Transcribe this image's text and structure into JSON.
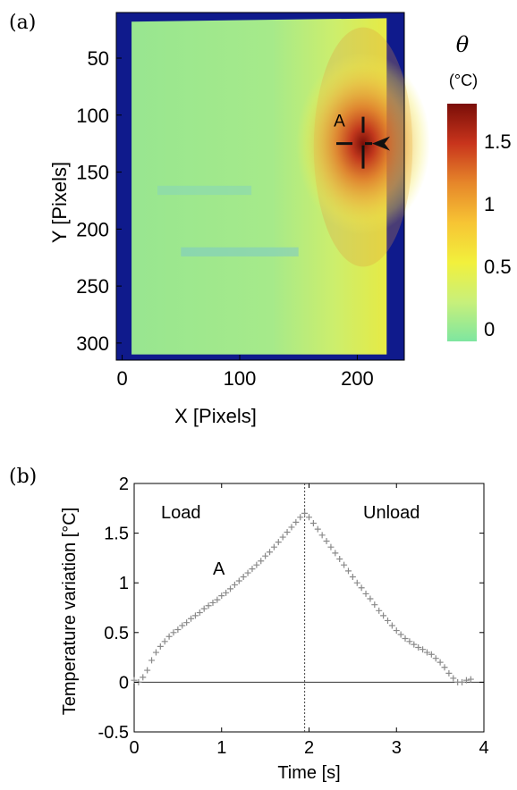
{
  "chart_data": [
    {
      "panel": "(a)",
      "type": "heatmap",
      "xlabel": "X [Pixels]",
      "ylabel": "Y [Pixels]",
      "xlim": [
        -5,
        240
      ],
      "ylim": [
        315,
        10
      ],
      "xticks": [
        0,
        100,
        200
      ],
      "yticks": [
        50,
        100,
        150,
        200,
        250,
        300
      ],
      "annotation": "A",
      "hotspot": {
        "x": 205,
        "y": 125,
        "peak": 1.75
      },
      "colorbar": {
        "symbol": "θ",
        "unit": "(°C)",
        "range": [
          -0.1,
          1.8
        ],
        "ticks": [
          0,
          0.5,
          1,
          1.5
        ],
        "tick_labels": [
          "0",
          "0.5",
          "1",
          "1.5"
        ],
        "colors": [
          "#7ee6a0",
          "#c8f07a",
          "#f2f03c",
          "#f7c434",
          "#e6862a",
          "#c8341c",
          "#7a0e08"
        ]
      },
      "background_color": "#0f1a8c",
      "field_color": "#9ee88a"
    },
    {
      "panel": "(b)",
      "type": "scatter",
      "xlabel": "Time [s]",
      "ylabel": "Temperature variation [°C]",
      "xlim": [
        0,
        4
      ],
      "ylim": [
        -0.5,
        2
      ],
      "xticks": [
        0,
        1,
        2,
        3,
        4
      ],
      "yticks": [
        -0.5,
        0,
        0.5,
        1,
        1.5,
        2
      ],
      "ytick_labels": [
        "-0.5",
        "0",
        "0.5",
        "1",
        "1.5",
        "2"
      ],
      "marker": "+",
      "load_label": "Load",
      "unload_label": "Unload",
      "point_label": "A",
      "vline_x": 1.95,
      "x": [
        0.0,
        0.05,
        0.1,
        0.15,
        0.2,
        0.25,
        0.3,
        0.35,
        0.4,
        0.45,
        0.5,
        0.55,
        0.6,
        0.65,
        0.7,
        0.75,
        0.8,
        0.85,
        0.9,
        0.95,
        1.0,
        1.05,
        1.1,
        1.15,
        1.2,
        1.25,
        1.3,
        1.35,
        1.4,
        1.45,
        1.5,
        1.55,
        1.6,
        1.65,
        1.7,
        1.75,
        1.8,
        1.85,
        1.9,
        1.95,
        2.0,
        2.05,
        2.1,
        2.15,
        2.2,
        2.25,
        2.3,
        2.35,
        2.4,
        2.45,
        2.5,
        2.55,
        2.6,
        2.65,
        2.7,
        2.75,
        2.8,
        2.85,
        2.9,
        2.95,
        3.0,
        3.05,
        3.1,
        3.15,
        3.2,
        3.25,
        3.3,
        3.35,
        3.4,
        3.45,
        3.5,
        3.55,
        3.6,
        3.65,
        3.7,
        3.75,
        3.8,
        3.85
      ],
      "y": [
        0.02,
        0.0,
        0.05,
        0.12,
        0.22,
        0.3,
        0.36,
        0.41,
        0.46,
        0.5,
        0.53,
        0.57,
        0.6,
        0.64,
        0.67,
        0.7,
        0.74,
        0.77,
        0.8,
        0.83,
        0.87,
        0.9,
        0.94,
        0.98,
        1.02,
        1.06,
        1.1,
        1.14,
        1.18,
        1.22,
        1.27,
        1.31,
        1.36,
        1.41,
        1.46,
        1.51,
        1.56,
        1.61,
        1.66,
        1.7,
        1.66,
        1.6,
        1.54,
        1.48,
        1.42,
        1.36,
        1.3,
        1.24,
        1.18,
        1.12,
        1.06,
        1.0,
        0.95,
        0.89,
        0.84,
        0.78,
        0.72,
        0.67,
        0.62,
        0.57,
        0.52,
        0.48,
        0.44,
        0.41,
        0.38,
        0.35,
        0.33,
        0.3,
        0.28,
        0.24,
        0.2,
        0.15,
        0.09,
        0.04,
        0.0,
        0.0,
        0.02,
        0.03
      ]
    }
  ]
}
